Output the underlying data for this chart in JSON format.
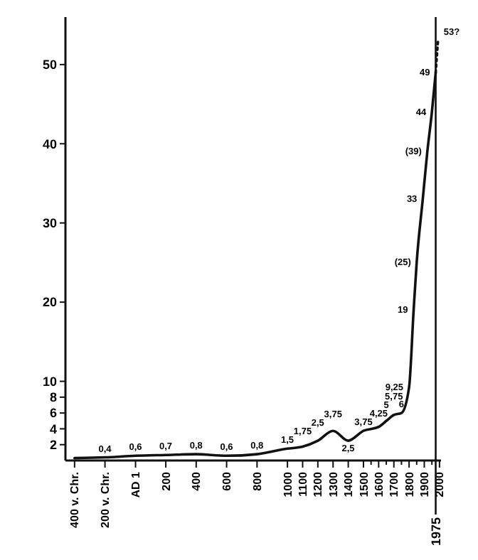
{
  "chart_data": {
    "type": "line",
    "xlim": [
      -460,
      2010
    ],
    "ylim": [
      0,
      56
    ],
    "xticks": [
      {
        "value": -400,
        "label": "400 v. Chr."
      },
      {
        "value": -200,
        "label": "200 v. Chr."
      },
      {
        "value": 1,
        "label": "AD 1"
      },
      200,
      400,
      600,
      800,
      1000,
      1100,
      1200,
      1300,
      1400,
      1500,
      {
        "value": 1550,
        "label": null
      },
      1600,
      {
        "value": 1650,
        "label": null
      },
      1700,
      {
        "value": 1750,
        "label": null
      },
      1800,
      {
        "value": 1850,
        "label": null
      },
      1900,
      {
        "value": 1950,
        "label": null
      },
      2000
    ],
    "yticks": [
      2,
      4,
      6,
      8,
      10,
      20,
      30,
      40,
      50
    ],
    "grid": false,
    "marker": "none",
    "ref_lines": [
      {
        "axis": "x",
        "value": 1975,
        "label": "1975"
      }
    ],
    "series": [
      {
        "color": "#111111",
        "line_style": "solid",
        "x": [
          -400,
          -200,
          1,
          200,
          400,
          600,
          800,
          1000,
          1100,
          1200,
          1300,
          1400,
          1500,
          1600,
          1650,
          1700,
          1750,
          1800,
          1830,
          1850,
          1890,
          1920,
          1950,
          1975
        ],
        "values": [
          0.3,
          0.4,
          0.6,
          0.7,
          0.8,
          0.6,
          0.8,
          1.5,
          1.75,
          2.5,
          3.75,
          2.5,
          3.75,
          4.25,
          5,
          5.75,
          6,
          9.25,
          19,
          25,
          33,
          39,
          44,
          49
        ],
        "value_labels": [
          null,
          "0,4",
          "0,6",
          "0,7",
          "0,8",
          "0,6",
          "0,8",
          "1,5",
          "1,75",
          "2,5",
          "3,75",
          "2,5",
          "3,75",
          "4,25",
          "5",
          "5,75",
          "6",
          "9,25",
          "19",
          "(25)",
          "33",
          "(39)",
          "44",
          "49"
        ]
      },
      {
        "color": "#111111",
        "line_style": "dotted",
        "x": [
          1975,
          1990
        ],
        "values": [
          49,
          53
        ],
        "value_labels": [
          null,
          "53?"
        ]
      }
    ]
  }
}
